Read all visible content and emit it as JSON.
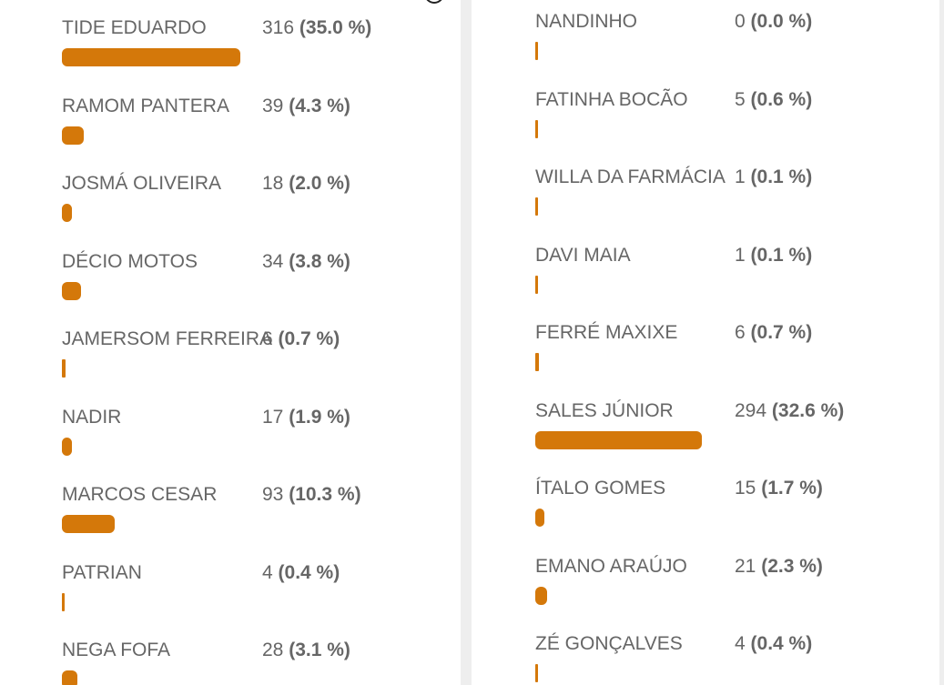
{
  "colors": {
    "bar": "#d4780a",
    "text": "#666666"
  },
  "left_column": [
    {
      "name": "TIDE EDUARDO",
      "votes": "316",
      "percent": "(35.0 %)",
      "share": 35.0
    },
    {
      "name": "RAMOM PANTERA",
      "votes": "39",
      "percent": "(4.3 %)",
      "share": 4.3
    },
    {
      "name": "JOSMÁ OLIVEIRA",
      "votes": "18",
      "percent": "(2.0 %)",
      "share": 2.0
    },
    {
      "name": "DÉCIO MOTOS",
      "votes": "34",
      "percent": "(3.8 %)",
      "share": 3.8
    },
    {
      "name": "JAMERSOM FERREIRA",
      "votes": "6",
      "percent": "(0.7 %)",
      "share": 0.7
    },
    {
      "name": "NADIR",
      "votes": "17",
      "percent": "(1.9 %)",
      "share": 1.9
    },
    {
      "name": "MARCOS CESAR",
      "votes": "93",
      "percent": "(10.3 %)",
      "share": 10.3
    },
    {
      "name": "PATRIAN",
      "votes": "4",
      "percent": "(0.4 %)",
      "share": 0.4
    },
    {
      "name": "NEGA FOFA",
      "votes": "28",
      "percent": "(3.1 %)",
      "share": 3.1
    }
  ],
  "right_column": [
    {
      "name": "NANDINHO",
      "votes": "0",
      "percent": "(0.0 %)",
      "share": 0.0
    },
    {
      "name": "FATINHA BOCÃO",
      "votes": "5",
      "percent": "(0.6 %)",
      "share": 0.6
    },
    {
      "name": "WILLA DA FARMÁCIA",
      "votes": "1",
      "percent": "(0.1 %)",
      "share": 0.1
    },
    {
      "name": "DAVI MAIA",
      "votes": "1",
      "percent": "(0.1 %)",
      "share": 0.1
    },
    {
      "name": "FERRÉ MAXIXE",
      "votes": "6",
      "percent": "(0.7 %)",
      "share": 0.7
    },
    {
      "name": "SALES JÚNIOR",
      "votes": "294",
      "percent": "(32.6 %)",
      "share": 32.6
    },
    {
      "name": "ÍTALO GOMES",
      "votes": "15",
      "percent": "(1.7 %)",
      "share": 1.7
    },
    {
      "name": "EMANO ARAÚJO",
      "votes": "21",
      "percent": "(2.3 %)",
      "share": 2.3
    },
    {
      "name": "ZÉ GONÇALVES",
      "votes": "4",
      "percent": "(0.4 %)",
      "share": 0.4
    }
  ]
}
